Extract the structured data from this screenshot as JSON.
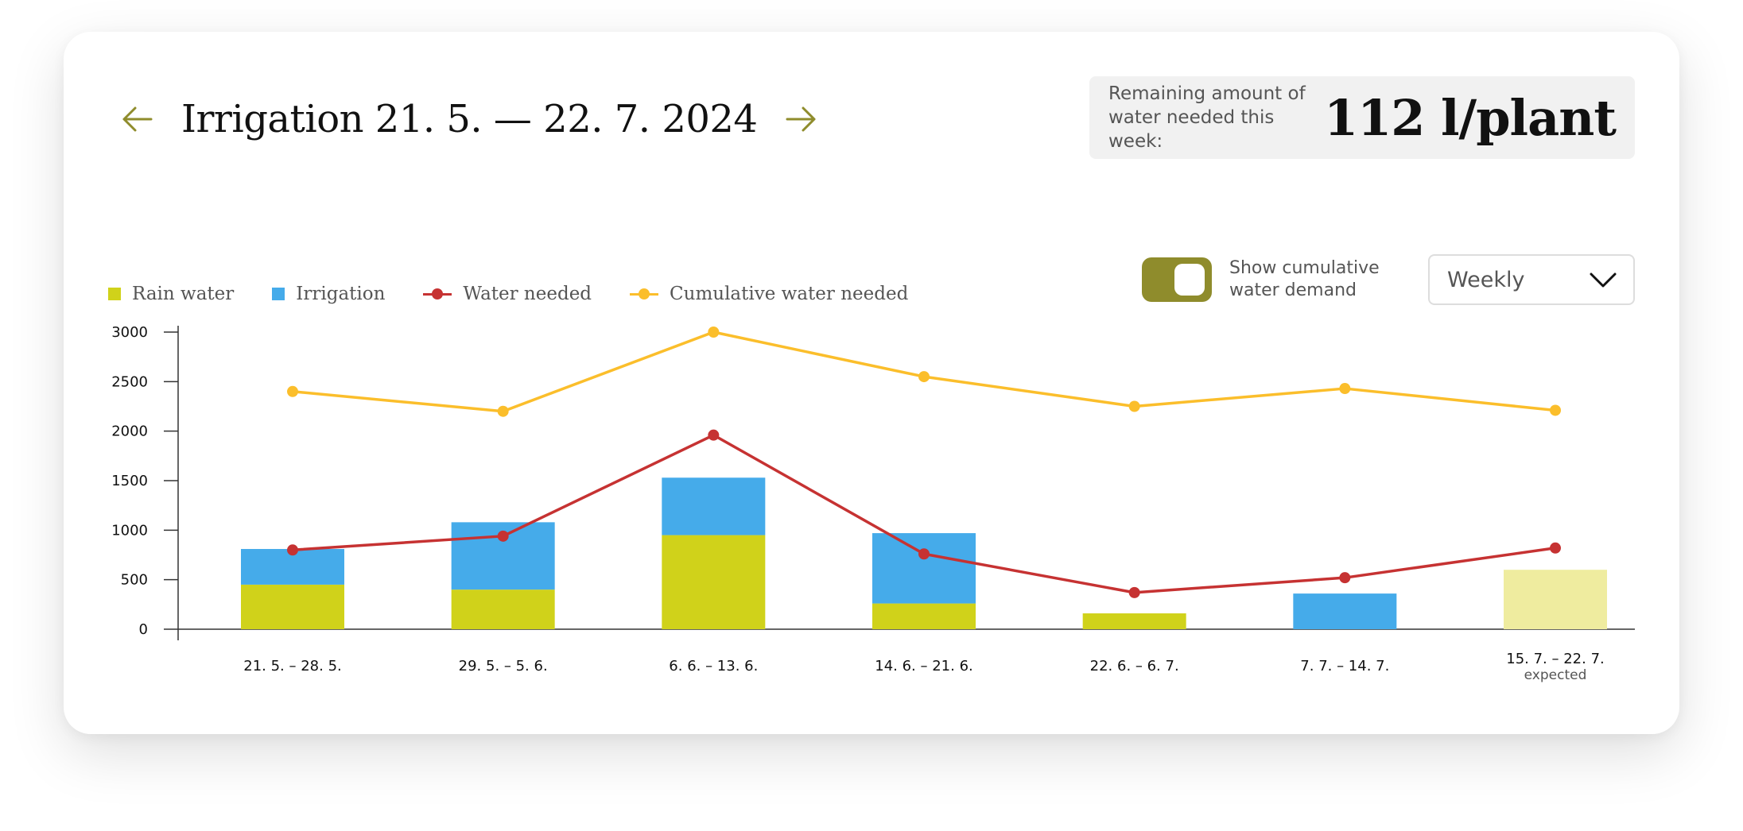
{
  "header": {
    "title": "Irrigation 21. 5. — 22. 7. 2024",
    "prev_icon": "arrow-left-icon",
    "next_icon": "arrow-right-icon"
  },
  "remaining": {
    "label_line1": "Remaining amount of",
    "label_line2": "water needed this week:",
    "value": "112 l/plant"
  },
  "controls": {
    "toggle_label_line1": "Show cumulative",
    "toggle_label_line2": "water demand",
    "toggle_on": true,
    "period_select_value": "Weekly",
    "dropdown_icon": "chevron-down-icon"
  },
  "colors": {
    "accent": "#8f8c2c",
    "rain": "#d0d21a",
    "rain_expected": "#efec9f",
    "irrigation": "#45abea",
    "water_needed": "#c63232",
    "cumulative": "#fbbe2b"
  },
  "chart_data": {
    "type": "bar",
    "stacked": true,
    "title": "",
    "xlabel": "",
    "ylabel": "",
    "ylim": [
      0,
      3000
    ],
    "yticks": [
      0,
      500,
      1000,
      1500,
      2000,
      2500,
      3000
    ],
    "categories": [
      "21. 5. – 28. 5.",
      "29. 5. – 5. 6.",
      "6. 6. – 13. 6.",
      "14. 6. – 21. 6.",
      "22. 6. – 6. 7.",
      "7. 7. – 14. 7.",
      "15. 7. – 22. 7."
    ],
    "category_sublabels": [
      "",
      "",
      "",
      "",
      "",
      "",
      "expected"
    ],
    "legend": {
      "placement": "top-left",
      "entries": [
        "Rain water",
        "Irrigation",
        "Water needed",
        "Cumulative water needed"
      ]
    },
    "series": [
      {
        "name": "Rain water",
        "type": "bar",
        "values": [
          450,
          400,
          950,
          260,
          160,
          0,
          600
        ]
      },
      {
        "name": "Irrigation",
        "type": "bar",
        "values": [
          360,
          680,
          580,
          710,
          0,
          360,
          0
        ]
      },
      {
        "name": "Water needed",
        "type": "line",
        "values": [
          800,
          940,
          1960,
          760,
          370,
          520,
          820
        ]
      },
      {
        "name": "Cumulative water needed",
        "type": "line",
        "values": [
          2400,
          2200,
          3000,
          2550,
          2250,
          2430,
          2210
        ]
      }
    ]
  }
}
